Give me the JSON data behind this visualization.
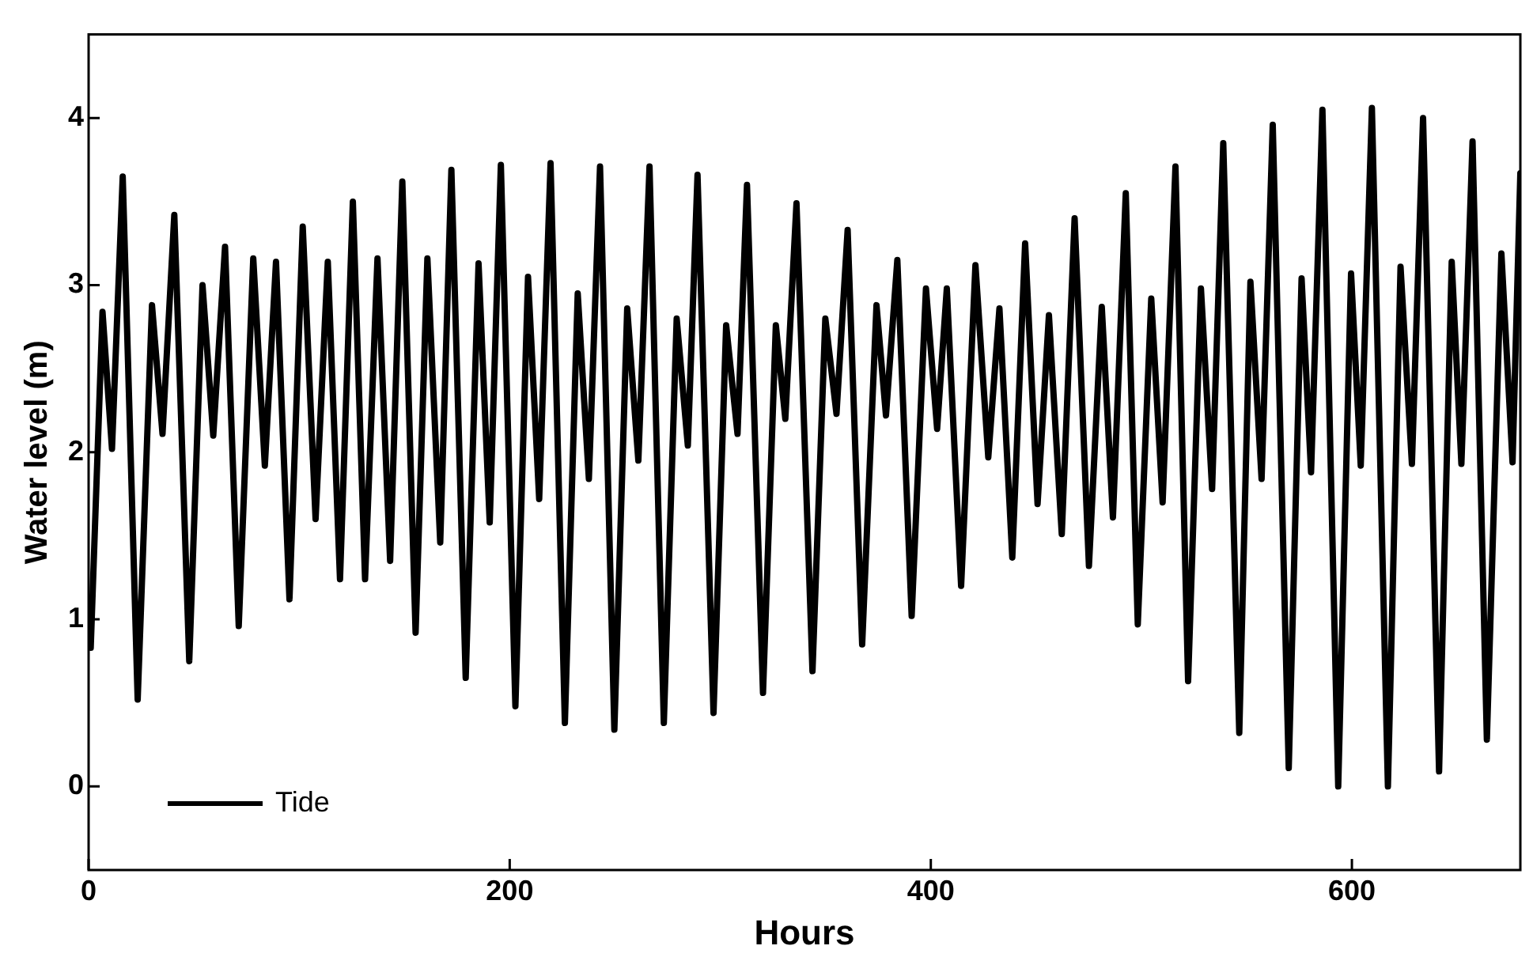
{
  "chart_data": {
    "type": "line",
    "xlabel": "Hours",
    "ylabel": "Water level (m)",
    "xlim": [
      0,
      680
    ],
    "xticks": [
      0,
      200,
      400,
      600
    ],
    "ylim": [
      -0.5,
      4.5
    ],
    "yticks": [
      0,
      1,
      2,
      3,
      4
    ],
    "grid": false,
    "legend": "bottom left",
    "marker": "none",
    "line_style": "solid",
    "series": [
      {
        "name": "Tide",
        "color": "#000000",
        "x": [
          1,
          6.6,
          11.1,
          16.2,
          23.3,
          30.1,
          35.1,
          40.7,
          47.8,
          54.1,
          59.2,
          64.8,
          71.3,
          78.2,
          83.7,
          89.0,
          95.4,
          101.7,
          107.8,
          113.6,
          119.4,
          125.5,
          131.3,
          137.2,
          143.2,
          149.0,
          155.3,
          160.9,
          167.0,
          172.3,
          179.1,
          185.2,
          190.5,
          195.8,
          202.7,
          208.7,
          214.0,
          219.4,
          226.2,
          232.3,
          237.6,
          242.9,
          249.7,
          255.8,
          261.1,
          266.4,
          273.2,
          279.3,
          284.6,
          289.2,
          296.8,
          302.8,
          308.2,
          312.7,
          320.3,
          326.4,
          330.9,
          336.2,
          343.8,
          349.9,
          355.2,
          360.5,
          367.4,
          374.2,
          378.7,
          384.1,
          390.9,
          397.7,
          403.0,
          407.6,
          414.4,
          421.2,
          427.3,
          432.6,
          438.7,
          444.8,
          450.7,
          456.1,
          462.2,
          468.3,
          475.1,
          481.2,
          486.5,
          492.6,
          498.3,
          504.7,
          510.1,
          516.2,
          522.2,
          528.3,
          533.6,
          538.9,
          546.5,
          551.8,
          557.1,
          562.4,
          570.0,
          576.1,
          580.6,
          586.0,
          593.5,
          599.6,
          604.2,
          609.5,
          617.1,
          623.1,
          628.5,
          633.8,
          641.4,
          647.4,
          652.0,
          657.3,
          664.1,
          671.0,
          676.3,
          680.0
        ],
        "values": [
          0.83,
          2.84,
          2.02,
          3.65,
          0.52,
          2.88,
          2.11,
          3.42,
          0.75,
          3.0,
          2.1,
          3.23,
          0.96,
          3.16,
          1.92,
          3.14,
          1.12,
          3.35,
          1.6,
          3.14,
          1.24,
          3.5,
          1.24,
          3.16,
          1.35,
          3.62,
          0.92,
          3.16,
          1.46,
          3.69,
          0.65,
          3.13,
          1.58,
          3.72,
          0.48,
          3.05,
          1.72,
          3.73,
          0.38,
          2.95,
          1.84,
          3.71,
          0.34,
          2.86,
          1.95,
          3.71,
          0.38,
          2.8,
          2.04,
          3.66,
          0.44,
          2.76,
          2.11,
          3.6,
          0.56,
          2.76,
          2.2,
          3.49,
          0.69,
          2.8,
          2.23,
          3.33,
          0.85,
          2.88,
          2.22,
          3.15,
          1.02,
          2.98,
          2.14,
          2.98,
          1.2,
          3.12,
          1.97,
          2.86,
          1.37,
          3.25,
          1.69,
          2.82,
          1.51,
          3.4,
          1.32,
          2.87,
          1.61,
          3.55,
          0.97,
          2.92,
          1.7,
          3.71,
          0.63,
          2.98,
          1.78,
          3.85,
          0.32,
          3.02,
          1.84,
          3.96,
          0.11,
          3.04,
          1.88,
          4.05,
          0.0,
          3.07,
          1.92,
          4.06,
          0.0,
          3.11,
          1.93,
          4.0,
          0.09,
          3.14,
          1.93,
          3.86,
          0.28,
          3.19,
          1.94,
          3.67
        ]
      }
    ]
  }
}
